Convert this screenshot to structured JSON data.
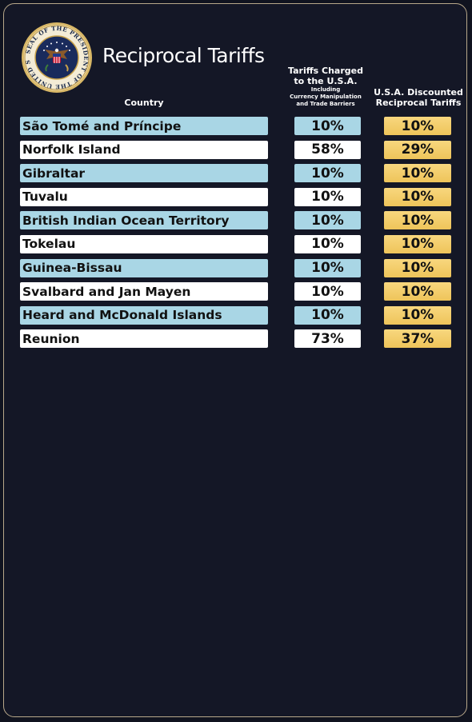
{
  "title": "Reciprocal Tariffs",
  "seal": {
    "icon": "presidential-seal-icon",
    "text": "SEAL OF THE PRESIDENT OF THE UNITED STATES"
  },
  "headers": {
    "country": "Country",
    "charged_line1": "Tariffs Charged",
    "charged_line2": "to the U.S.A.",
    "charged_note1": "Including",
    "charged_note2": "Currency Manipulation",
    "charged_note3": "and Trade Barriers",
    "discounted_line1": "U.S.A. Discounted",
    "discounted_line2": "Reciprocal Tariffs"
  },
  "colors": {
    "background": "#141726",
    "row_blue": "#a9d6e5",
    "row_white": "#ffffff",
    "discount_gold": "#f3cd6a"
  },
  "rows": [
    {
      "country": "São Tomé and Príncipe",
      "charged": "10%",
      "discounted": "10%"
    },
    {
      "country": "Norfolk Island",
      "charged": "58%",
      "discounted": "29%"
    },
    {
      "country": "Gibraltar",
      "charged": "10%",
      "discounted": "10%"
    },
    {
      "country": "Tuvalu",
      "charged": "10%",
      "discounted": "10%"
    },
    {
      "country": "British Indian Ocean Territory",
      "charged": "10%",
      "discounted": "10%"
    },
    {
      "country": "Tokelau",
      "charged": "10%",
      "discounted": "10%"
    },
    {
      "country": "Guinea-Bissau",
      "charged": "10%",
      "discounted": "10%"
    },
    {
      "country": "Svalbard and Jan Mayen",
      "charged": "10%",
      "discounted": "10%"
    },
    {
      "country": "Heard and McDonald Islands",
      "charged": "10%",
      "discounted": "10%"
    },
    {
      "country": "Reunion",
      "charged": "73%",
      "discounted": "37%"
    }
  ]
}
